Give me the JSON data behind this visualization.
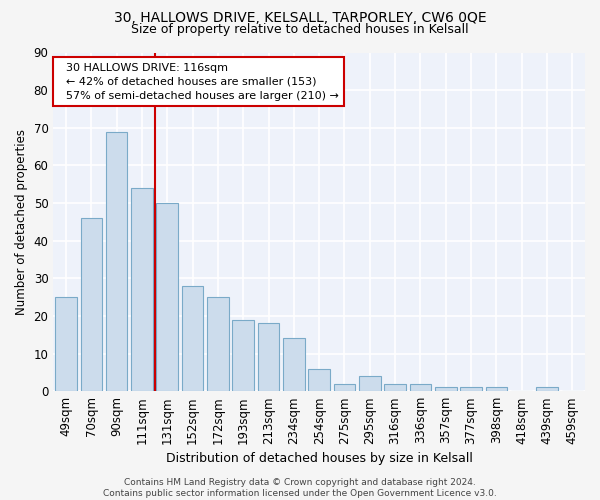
{
  "title": "30, HALLOWS DRIVE, KELSALL, TARPORLEY, CW6 0QE",
  "subtitle": "Size of property relative to detached houses in Kelsall",
  "xlabel": "Distribution of detached houses by size in Kelsall",
  "ylabel": "Number of detached properties",
  "bar_color": "#ccdcec",
  "bar_edge_color": "#7aaac8",
  "background_color": "#eef2fa",
  "grid_color": "#ffffff",
  "fig_background": "#f5f5f5",
  "categories": [
    "49sqm",
    "70sqm",
    "90sqm",
    "111sqm",
    "131sqm",
    "152sqm",
    "172sqm",
    "193sqm",
    "213sqm",
    "234sqm",
    "254sqm",
    "275sqm",
    "295sqm",
    "316sqm",
    "336sqm",
    "357sqm",
    "377sqm",
    "398sqm",
    "418sqm",
    "439sqm",
    "459sqm"
  ],
  "values": [
    25,
    46,
    69,
    54,
    50,
    28,
    25,
    19,
    18,
    14,
    6,
    2,
    4,
    2,
    2,
    1,
    1,
    1,
    0,
    1,
    0
  ],
  "annotation_text": "  30 HALLOWS DRIVE: 116sqm\n  ← 42% of detached houses are smaller (153)\n  57% of semi-detached houses are larger (210) →",
  "vline_x": 3.5,
  "annotation_box_edge": "#cc0000",
  "vline_color": "#cc0000",
  "footer_text": "Contains HM Land Registry data © Crown copyright and database right 2024.\nContains public sector information licensed under the Open Government Licence v3.0.",
  "ylim": [
    0,
    90
  ],
  "yticks": [
    0,
    10,
    20,
    30,
    40,
    50,
    60,
    70,
    80,
    90
  ]
}
